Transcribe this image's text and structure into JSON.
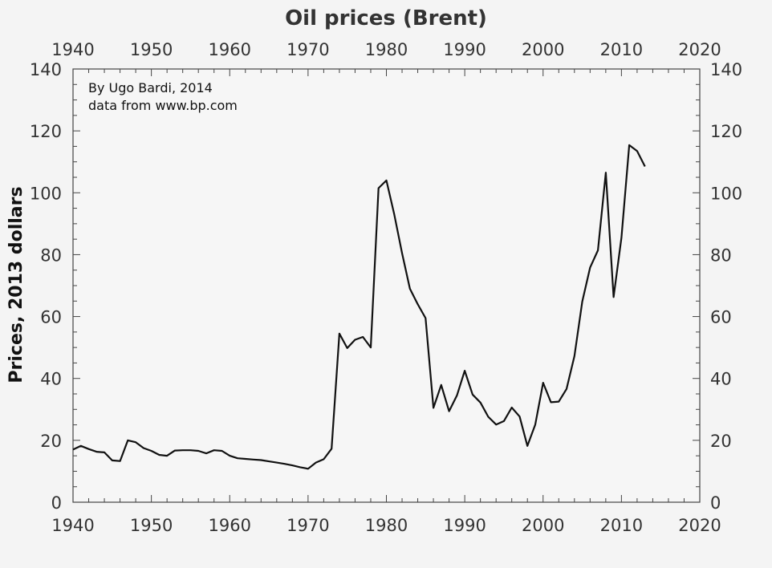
{
  "chart_data": {
    "type": "line",
    "title": "Oil prices (Brent)",
    "xlabel": "",
    "ylabel": "Prices, 2013 dollars",
    "annotations": [
      "By Ugo Bardi, 2014",
      "data from www.bp.com"
    ],
    "xlim": [
      1940,
      2020
    ],
    "ylim": [
      0,
      140
    ],
    "x_ticks": [
      1940,
      1950,
      1960,
      1970,
      1980,
      1990,
      2000,
      2010,
      2020
    ],
    "y_ticks": [
      0,
      20,
      40,
      60,
      80,
      100,
      120,
      140
    ],
    "x_minor_step": 2,
    "y_minor_step": 5,
    "grid": false,
    "line_color": "#111111",
    "series": [
      {
        "x": [
          1940,
          1941,
          1942,
          1943,
          1944,
          1945,
          1946,
          1947,
          1948,
          1949,
          1950,
          1951,
          1952,
          1953,
          1954,
          1955,
          1956,
          1957,
          1958,
          1959,
          1960,
          1961,
          1962,
          1963,
          1964,
          1965,
          1966,
          1967,
          1968,
          1969,
          1970,
          1971,
          1972,
          1973,
          1974,
          1975,
          1976,
          1977,
          1978,
          1979,
          1980,
          1981,
          1982,
          1983,
          1984,
          1985,
          1986,
          1987,
          1988,
          1989,
          1990,
          1991,
          1992,
          1993,
          1994,
          1995,
          1996,
          1997,
          1998,
          1999,
          2000,
          2001,
          2002,
          2003,
          2004,
          2005,
          2006,
          2007,
          2008,
          2009,
          2010,
          2011,
          2012,
          2013
        ],
        "values": [
          17,
          18.2,
          17.2,
          16.3,
          16.1,
          13.5,
          13.3,
          20,
          19.4,
          17.5,
          16.6,
          15.3,
          15,
          16.7,
          16.8,
          16.8,
          16.6,
          15.8,
          16.8,
          16.6,
          15,
          14.2,
          14,
          13.8,
          13.6,
          13.2,
          12.8,
          12.4,
          11.9,
          11.3,
          10.8,
          12.8,
          13.9,
          17.3,
          54.5,
          49.8,
          52.5,
          53.4,
          50,
          101.5,
          104,
          93,
          80.5,
          69,
          64,
          59.5,
          30.5,
          37.9,
          29.4,
          34.5,
          42.5,
          34.8,
          32.2,
          27.6,
          25.1,
          26.2,
          30.6,
          27.7,
          18.2,
          25.1,
          38.6,
          32.3,
          32.5,
          36.6,
          47.2,
          64.9,
          75.8,
          81.4,
          106.5,
          66.3,
          85.5,
          115.4,
          113.5,
          108.5
        ]
      }
    ]
  }
}
